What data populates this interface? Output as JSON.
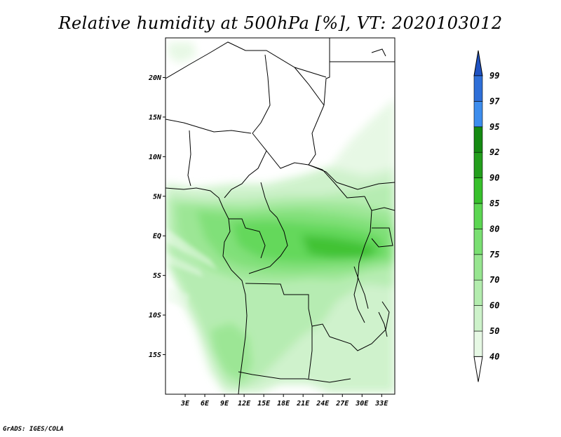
{
  "title": "Relative humidity at 500hPa [%], VT: 2020103012",
  "credit": "GrADS: IGES/COLA",
  "map": {
    "lon_range": [
      0,
      35
    ],
    "lat_range": [
      -20,
      25
    ],
    "lat_ticks": [
      {
        "lat": 20,
        "label": "20N"
      },
      {
        "lat": 15,
        "label": "15N"
      },
      {
        "lat": 10,
        "label": "10N"
      },
      {
        "lat": 5,
        "label": "5N"
      },
      {
        "lat": 0,
        "label": "EQ"
      },
      {
        "lat": -5,
        "label": "5S"
      },
      {
        "lat": -10,
        "label": "10S"
      },
      {
        "lat": -15,
        "label": "15S"
      }
    ],
    "lon_ticks": [
      {
        "lon": 3,
        "label": "3E"
      },
      {
        "lon": 6,
        "label": "6E"
      },
      {
        "lon": 9,
        "label": "9E"
      },
      {
        "lon": 12,
        "label": "12E"
      },
      {
        "lon": 15,
        "label": "15E"
      },
      {
        "lon": 18,
        "label": "18E"
      },
      {
        "lon": 21,
        "label": "21E"
      },
      {
        "lon": 24,
        "label": "24E"
      },
      {
        "lon": 27,
        "label": "27E"
      },
      {
        "lon": 30,
        "label": "30E"
      },
      {
        "lon": 33,
        "label": "33E"
      }
    ]
  },
  "colorbar": {
    "bins": [
      {
        "label": "40",
        "color": "#ffffff"
      },
      {
        "label": "50",
        "color": "#e6f8e4"
      },
      {
        "label": "60",
        "color": "#cdf2ca"
      },
      {
        "label": "70",
        "color": "#b3ecae"
      },
      {
        "label": "75",
        "color": "#97e590"
      },
      {
        "label": "80",
        "color": "#7adf72"
      },
      {
        "label": "85",
        "color": "#5cd652"
      },
      {
        "label": "90",
        "color": "#37c02c"
      },
      {
        "label": "92",
        "color": "#239e1c"
      },
      {
        "label": "95",
        "color": "#148a12"
      },
      {
        "label": "97",
        "color": "#3d8ded"
      },
      {
        "label": "99",
        "color": "#2f6fd8"
      }
    ],
    "top_color": "#1f52c2",
    "bottom_color": "#ffffff"
  }
}
